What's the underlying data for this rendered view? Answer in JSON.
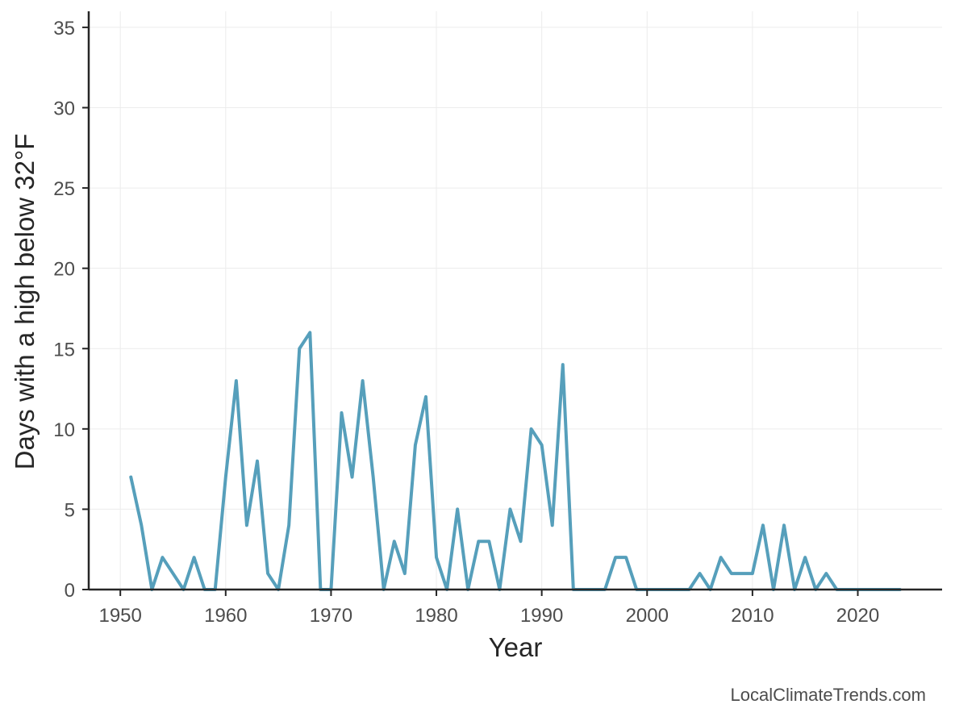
{
  "chart_data": {
    "type": "line",
    "title": "",
    "xlabel": "Year",
    "ylabel": "Days with a high below 32°F",
    "xlim": [
      1947,
      2028
    ],
    "ylim": [
      0,
      36
    ],
    "xticks": [
      1950,
      1960,
      1970,
      1980,
      1990,
      2000,
      2010,
      2020
    ],
    "yticks": [
      0,
      5,
      10,
      15,
      20,
      25,
      30,
      35
    ],
    "grid": true,
    "legend": "none",
    "series": [
      {
        "color": "#569fbb",
        "x": [
          1951,
          1952,
          1953,
          1954,
          1955,
          1956,
          1957,
          1958,
          1959,
          1960,
          1961,
          1962,
          1963,
          1964,
          1965,
          1966,
          1967,
          1968,
          1969,
          1970,
          1971,
          1972,
          1973,
          1974,
          1975,
          1976,
          1977,
          1978,
          1979,
          1980,
          1981,
          1982,
          1983,
          1984,
          1985,
          1986,
          1987,
          1988,
          1989,
          1990,
          1991,
          1992,
          1993,
          1994,
          1995,
          1996,
          1997,
          1998,
          1999,
          2000,
          2001,
          2002,
          2003,
          2004,
          2005,
          2006,
          2007,
          2008,
          2009,
          2010,
          2011,
          2012,
          2013,
          2014,
          2015,
          2016,
          2017,
          2018,
          2019,
          2020,
          2021,
          2022,
          2023,
          2024
        ],
        "values": [
          7,
          4,
          0,
          2,
          1,
          0,
          2,
          0,
          0,
          7,
          13,
          4,
          8,
          1,
          0,
          4,
          15,
          16,
          0,
          0,
          11,
          7,
          13,
          7,
          0,
          3,
          1,
          9,
          12,
          2,
          0,
          5,
          0,
          3,
          3,
          0,
          5,
          3,
          10,
          9,
          4,
          14,
          0,
          0,
          0,
          0,
          2,
          2,
          0,
          0,
          0,
          0,
          0,
          0,
          1,
          0,
          2,
          1,
          1,
          1,
          4,
          0,
          4,
          0,
          2,
          0,
          1,
          0,
          0,
          0,
          0,
          0,
          0,
          0
        ]
      }
    ]
  },
  "watermark": "LocalClimateTrends.com",
  "colors": {
    "line": "#569fbb",
    "axis": "#262626",
    "grid": "#ececec",
    "tick_label": "#4d4d4d"
  }
}
